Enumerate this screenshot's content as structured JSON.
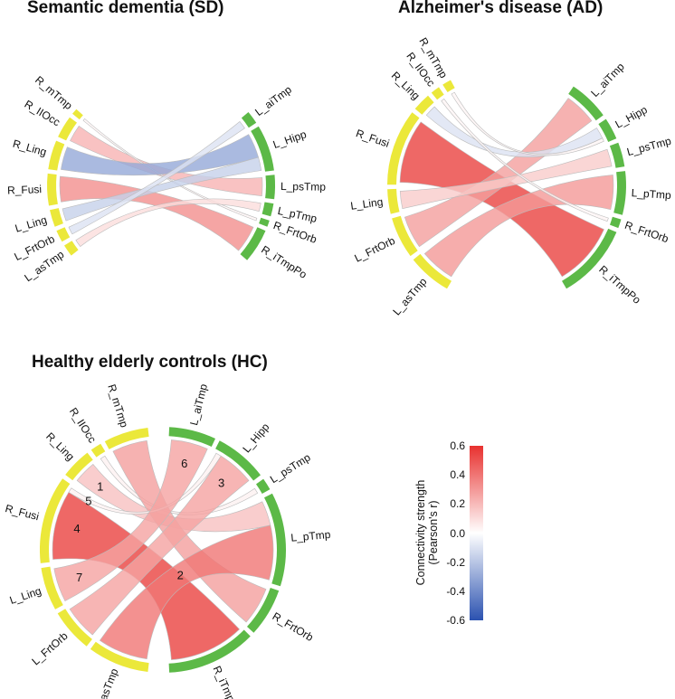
{
  "colors": {
    "left_group": "#ebe83a",
    "right_group": "#5cb947",
    "positive": "#e8312f",
    "negative": "#2b52b0",
    "neutral": "#ffffff"
  },
  "diagrams": [
    {
      "id": "sd",
      "title": "Semantic dementia (SD)",
      "left_sectors": [
        "L_asTmp",
        "L_FrtOrb",
        "L_Ling",
        "R_Fusi",
        "R_Ling",
        "R_IIOcc",
        "R_mTmp"
      ],
      "right_sectors": [
        "L_aiTmp",
        "L_Hipp",
        "L_psTmp",
        "L_pTmp",
        "R_FrtOrb",
        "R_iTmpPo"
      ],
      "links": [
        {
          "from": "R_IIOcc",
          "to": "L_psTmp",
          "r": 0.22
        },
        {
          "from": "R_mTmp",
          "to": "R_FrtOrb",
          "r": 0.03
        },
        {
          "from": "R_Ling",
          "to": "L_Hipp",
          "r": -0.3
        },
        {
          "from": "R_Fusi",
          "to": "R_iTmpPo",
          "r": 0.33
        },
        {
          "from": "L_Ling",
          "to": "L_Hipp",
          "r": -0.16
        },
        {
          "from": "L_FrtOrb",
          "to": "L_aiTmp",
          "r": -0.1
        },
        {
          "from": "L_asTmp",
          "to": "L_pTmp",
          "r": 0.1
        }
      ]
    },
    {
      "id": "ad",
      "title": "Alzheimer's disease (AD)",
      "left_sectors": [
        "L_asTmp",
        "L_FrtOrb",
        "L_Ling",
        "R_Fusi",
        "R_Ling",
        "R_IIOcc",
        "R_mTmp"
      ],
      "right_sectors": [
        "L_aiTmp",
        "L_Hipp",
        "L_psTmp",
        "L_pTmp",
        "R_FrtOrb",
        "R_iTmpPo"
      ],
      "links": [
        {
          "from": "R_Fusi",
          "to": "R_iTmpPo",
          "r": 0.55
        },
        {
          "from": "L_asTmp",
          "to": "L_pTmp",
          "r": 0.3
        },
        {
          "from": "L_FrtOrb",
          "to": "L_aiTmp",
          "r": 0.28
        },
        {
          "from": "L_Ling",
          "to": "L_psTmp",
          "r": 0.15
        },
        {
          "from": "R_Ling",
          "to": "L_Hipp",
          "r": -0.1
        },
        {
          "from": "R_IIOcc",
          "to": "R_FrtOrb",
          "r": 0.03
        },
        {
          "from": "R_mTmp",
          "to": "L_Hipp",
          "r": 0.03
        }
      ]
    },
    {
      "id": "hc",
      "title": "Healthy elderly controls (HC)",
      "left_sectors": [
        "L_asTmp",
        "L_FrtOrb",
        "L_Ling",
        "R_Fusi",
        "R_Ling",
        "R_IIOcc",
        "R_mTmp"
      ],
      "right_sectors": [
        "L_aiTmp",
        "L_Hipp",
        "L_psTmp",
        "L_pTmp",
        "R_FrtOrb",
        "R_iTmpPo"
      ],
      "links": [
        {
          "from": "R_Ling",
          "to": "L_pTmp",
          "r": 0.18,
          "marker_from": "1"
        },
        {
          "from": "R_IIOcc",
          "to": "L_psTmp",
          "r": 0.04
        },
        {
          "from": "R_mTmp",
          "to": "R_FrtOrb",
          "r": 0.28
        },
        {
          "from": "R_Fusi",
          "to": "R_iTmpPo",
          "r": 0.55,
          "marker_from": "4"
        },
        {
          "from": "R_Fusi",
          "to": "L_Hipp",
          "r": 0.04,
          "marker_from": "5"
        },
        {
          "from": "L_Ling",
          "to": "L_aiTmp",
          "r": 0.27,
          "marker_from": "7",
          "marker_to": "6"
        },
        {
          "from": "L_FrtOrb",
          "to": "L_Hipp",
          "r": 0.27,
          "marker_to": "3"
        },
        {
          "from": "L_asTmp",
          "to": "L_pTmp",
          "r": 0.4,
          "marker_mid": "2"
        }
      ]
    }
  ],
  "colorbar": {
    "label_line1": "Connectivity strength",
    "label_line2": "(Pearson's r)",
    "min": -0.6,
    "max": 0.6,
    "ticks": [
      "0.6",
      "0.4",
      "0.2",
      "0.0",
      "-0.2",
      "-0.4",
      "-0.6"
    ]
  }
}
